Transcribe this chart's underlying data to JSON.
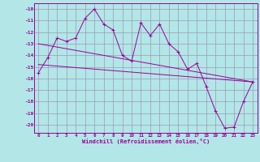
{
  "zigzag": [
    -15.5,
    -14.2,
    -12.5,
    -12.8,
    -12.5,
    -10.8,
    -10.0,
    -11.3,
    -11.8,
    -14.0,
    -14.5,
    -11.2,
    -12.3,
    -11.3,
    -13.0,
    -13.7,
    -15.2,
    -14.7,
    -16.7,
    -18.8,
    -20.3,
    -20.2,
    -18.0,
    -16.3
  ],
  "trend1_x": [
    0,
    23
  ],
  "trend1_y": [
    -13.0,
    -16.3
  ],
  "trend2_x": [
    0,
    23
  ],
  "trend2_y": [
    -14.8,
    -16.3
  ],
  "line_color": "#990099",
  "bg_color": "#b3e6e6",
  "grid_color": "#9999bb",
  "xlim": [
    -0.5,
    23.5
  ],
  "ylim": [
    -20.7,
    -9.5
  ],
  "yticks": [
    -10,
    -11,
    -12,
    -13,
    -14,
    -15,
    -16,
    -17,
    -18,
    -19,
    -20
  ],
  "xticks": [
    0,
    1,
    2,
    3,
    4,
    5,
    6,
    7,
    8,
    9,
    10,
    11,
    12,
    13,
    14,
    15,
    16,
    17,
    18,
    19,
    20,
    21,
    22,
    23
  ],
  "xlabel": "Windchill (Refroidissement éolien,°C)"
}
